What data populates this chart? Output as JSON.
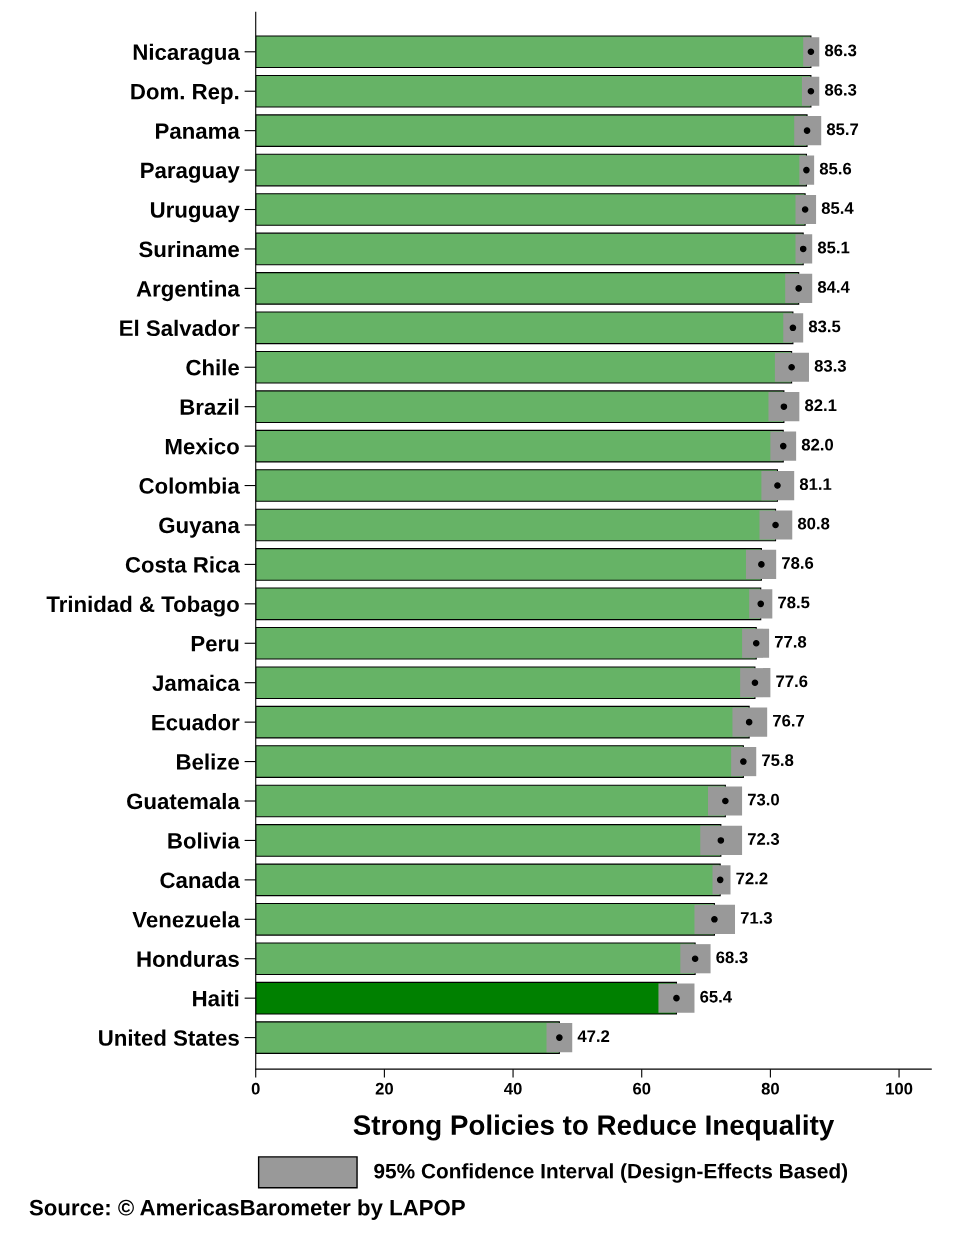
{
  "chart_data": {
    "type": "bar",
    "orientation": "horizontal",
    "xlabel": "Strong Policies to Reduce Inequality",
    "categories": [
      "Nicaragua",
      "Dom. Rep.",
      "Panama",
      "Paraguay",
      "Uruguay",
      "Suriname",
      "Argentina",
      "El Salvador",
      "Chile",
      "Brazil",
      "Mexico",
      "Colombia",
      "Guyana",
      "Costa Rica",
      "Trinidad & Tobago",
      "Peru",
      "Jamaica",
      "Ecuador",
      "Belize",
      "Guatemala",
      "Bolivia",
      "Canada",
      "Venezuela",
      "Honduras",
      "Haiti",
      "United States"
    ],
    "series": [
      {
        "values": [
          86.3,
          86.3,
          85.7,
          85.6,
          85.4,
          85.1,
          84.4,
          83.5,
          83.3,
          82.1,
          82.0,
          81.1,
          80.8,
          78.6,
          78.5,
          77.8,
          77.6,
          76.7,
          75.8,
          73.0,
          72.3,
          72.2,
          71.3,
          68.3,
          65.4,
          47.2
        ],
        "value_labels": [
          "86.3",
          "86.3",
          "85.7",
          "85.6",
          "85.4",
          "85.1",
          "84.4",
          "83.5",
          "83.3",
          "82.1",
          "82.0",
          "81.1",
          "80.8",
          "78.6",
          "78.5",
          "77.8",
          "77.6",
          "76.7",
          "75.8",
          "73.0",
          "72.3",
          "72.2",
          "71.3",
          "68.3",
          "65.4",
          "47.2"
        ],
        "errors": [
          [
            85.1,
            87.6
          ],
          [
            84.9,
            87.6
          ],
          [
            83.7,
            87.9
          ],
          [
            84.5,
            86.8
          ],
          [
            83.9,
            87.1
          ],
          [
            83.9,
            86.5
          ],
          [
            82.3,
            86.5
          ],
          [
            82.0,
            85.1
          ],
          [
            80.7,
            86.0
          ],
          [
            79.7,
            84.5
          ],
          [
            80.0,
            84.0
          ],
          [
            78.6,
            83.7
          ],
          [
            78.3,
            83.4
          ],
          [
            76.2,
            80.9
          ],
          [
            76.7,
            80.3
          ],
          [
            75.6,
            79.8
          ],
          [
            75.3,
            80.0
          ],
          [
            74.1,
            79.5
          ],
          [
            73.9,
            77.8
          ],
          [
            70.3,
            75.6
          ],
          [
            69.1,
            75.6
          ],
          [
            71.0,
            73.8
          ],
          [
            68.2,
            74.5
          ],
          [
            66.0,
            70.7
          ],
          [
            62.6,
            68.2
          ],
          [
            45.2,
            49.2
          ]
        ],
        "colors": [
          "#66b366",
          "#66b366",
          "#66b366",
          "#66b366",
          "#66b366",
          "#66b366",
          "#66b366",
          "#66b366",
          "#66b366",
          "#66b366",
          "#66b366",
          "#66b366",
          "#66b366",
          "#66b366",
          "#66b366",
          "#66b366",
          "#66b366",
          "#66b366",
          "#66b366",
          "#66b366",
          "#66b366",
          "#66b366",
          "#66b366",
          "#66b366",
          "#008000",
          "#66b366"
        ]
      },
      {
        "type": "scatter",
        "color": "#000000",
        "marker": "circle",
        "x": [
          "Nicaragua",
          "Dom. Rep.",
          "Panama",
          "Paraguay",
          "Uruguay",
          "Suriname",
          "Argentina",
          "El Salvador",
          "Chile",
          "Brazil",
          "Mexico",
          "Colombia",
          "Guyana",
          "Costa Rica",
          "Trinidad & Tobago",
          "Peru",
          "Jamaica",
          "Ecuador",
          "Belize",
          "Guatemala",
          "Bolivia",
          "Canada",
          "Venezuela",
          "Honduras",
          "Haiti",
          "United States"
        ],
        "values": [
          86.3,
          86.3,
          85.7,
          85.6,
          85.4,
          85.1,
          84.4,
          83.5,
          83.3,
          82.1,
          82.0,
          81.1,
          80.8,
          78.6,
          78.5,
          77.8,
          77.6,
          76.7,
          75.8,
          73.0,
          72.3,
          72.2,
          71.3,
          68.3,
          65.4,
          47.2
        ]
      }
    ],
    "grid": false,
    "xlim": [
      0,
      105
    ],
    "xticks": [
      0,
      20,
      40,
      60,
      80,
      100
    ],
    "annotations": [
      "95% Confidence Interval (Design-Effects Based)",
      "Source: © AmericasBarometer by LAPOP"
    ]
  }
}
